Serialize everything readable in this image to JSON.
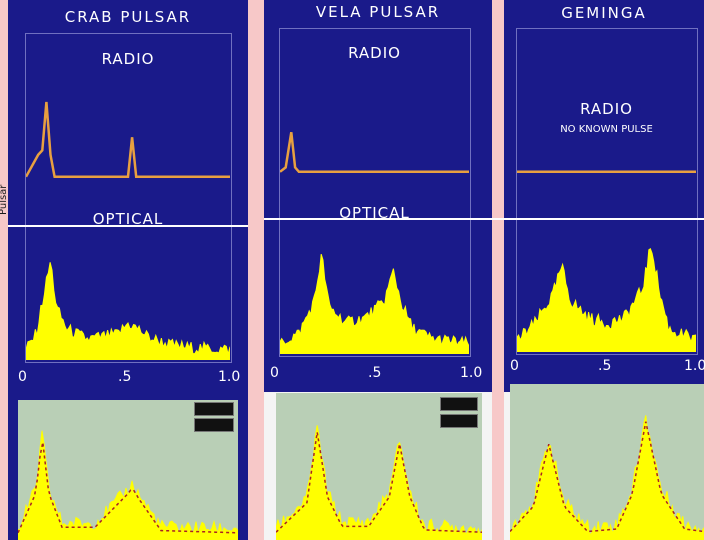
{
  "colors": {
    "panel_bg": "#1a1a8a",
    "radio_trace": "#e8a040",
    "optical_fill": "#ffff00",
    "gamma_bg": "#b9cfb6",
    "gamma_fit": "#aa2222",
    "side_strip": "#f7c8c8"
  },
  "left_edge_label": "Pulsar",
  "chart_data": [
    {
      "type": "area",
      "title": "CRAB PULSAR",
      "subplots": [
        {
          "label": "RADIO",
          "sublabel": "",
          "series": [
            {
              "x": [
                0,
                0.06,
                0.08,
                0.1,
                0.12,
                0.14,
                0.5,
                0.52,
                0.54,
                0.56,
                1.0
              ],
              "y": [
                0.05,
                0.3,
                0.35,
                0.9,
                0.3,
                0.05,
                0.05,
                0.5,
                0.05,
                0.05,
                0.05
              ]
            }
          ]
        },
        {
          "label": "OPTICAL",
          "sublabel": "",
          "series": [
            {
              "x": [
                0,
                0.05,
                0.1,
                0.12,
                0.15,
                0.2,
                0.3,
                0.45,
                0.5,
                0.55,
                0.6,
                0.7,
                0.8,
                1.0
              ],
              "y": [
                0.1,
                0.25,
                0.75,
                0.95,
                0.5,
                0.3,
                0.2,
                0.25,
                0.35,
                0.3,
                0.22,
                0.15,
                0.12,
                0.1
              ]
            }
          ]
        },
        {
          "label": "",
          "sublabel": "",
          "series": [
            {
              "x": [
                0,
                0.08,
                0.11,
                0.14,
                0.2,
                0.35,
                0.5,
                0.52,
                0.55,
                0.65,
                1.0
              ],
              "y": [
                0.1,
                0.45,
                0.95,
                0.45,
                0.15,
                0.15,
                0.45,
                0.5,
                0.4,
                0.12,
                0.1
              ]
            }
          ]
        }
      ],
      "x_ticks": [
        "0",
        ".5",
        "1.0"
      ],
      "xlim": [
        0,
        1
      ]
    },
    {
      "type": "area",
      "title": "VELA PULSAR",
      "subplots": [
        {
          "label": "RADIO",
          "sublabel": "",
          "series": [
            {
              "x": [
                0,
                0.03,
                0.06,
                0.08,
                0.1,
                1.0
              ],
              "y": [
                0.05,
                0.1,
                0.5,
                0.1,
                0.05,
                0.05
              ]
            }
          ]
        },
        {
          "label": "OPTICAL",
          "sublabel": "",
          "series": [
            {
              "x": [
                0,
                0.1,
                0.18,
                0.22,
                0.26,
                0.35,
                0.45,
                0.55,
                0.6,
                0.64,
                0.7,
                0.8,
                1.0
              ],
              "y": [
                0.1,
                0.2,
                0.5,
                0.95,
                0.45,
                0.3,
                0.35,
                0.5,
                0.8,
                0.5,
                0.25,
                0.15,
                0.1
              ]
            }
          ]
        },
        {
          "label": "",
          "sublabel": "",
          "series": [
            {
              "x": [
                0,
                0.15,
                0.2,
                0.25,
                0.32,
                0.45,
                0.55,
                0.6,
                0.65,
                0.72,
                1.0
              ],
              "y": [
                0.1,
                0.35,
                0.95,
                0.4,
                0.15,
                0.15,
                0.4,
                0.85,
                0.4,
                0.12,
                0.1
              ]
            }
          ]
        }
      ],
      "x_ticks": [
        "0",
        ".5",
        "1.0"
      ],
      "xlim": [
        0,
        1
      ]
    },
    {
      "type": "area",
      "title": "GEMINGA",
      "subplots": [
        {
          "label": "RADIO",
          "sublabel": "NO KNOWN PULSE",
          "series": [
            {
              "x": [
                0,
                1.0
              ],
              "y": [
                0.05,
                0.05
              ]
            }
          ]
        },
        {
          "label": "",
          "sublabel": "",
          "series": [
            {
              "x": [
                0,
                0.1,
                0.2,
                0.25,
                0.3,
                0.4,
                0.5,
                0.6,
                0.7,
                0.75,
                0.8,
                0.85,
                1.0
              ],
              "y": [
                0.1,
                0.25,
                0.5,
                0.75,
                0.45,
                0.3,
                0.25,
                0.3,
                0.55,
                0.95,
                0.5,
                0.2,
                0.1
              ]
            }
          ]
        },
        {
          "label": "",
          "sublabel": "",
          "series": [
            {
              "x": [
                0,
                0.12,
                0.2,
                0.28,
                0.4,
                0.55,
                0.63,
                0.7,
                0.78,
                0.9,
                1.0
              ],
              "y": [
                0.1,
                0.3,
                0.8,
                0.3,
                0.1,
                0.12,
                0.4,
                0.98,
                0.4,
                0.12,
                0.1
              ]
            }
          ]
        }
      ],
      "x_ticks": [
        "0",
        ".5",
        "1.0"
      ],
      "xlim": [
        0,
        1
      ]
    }
  ]
}
